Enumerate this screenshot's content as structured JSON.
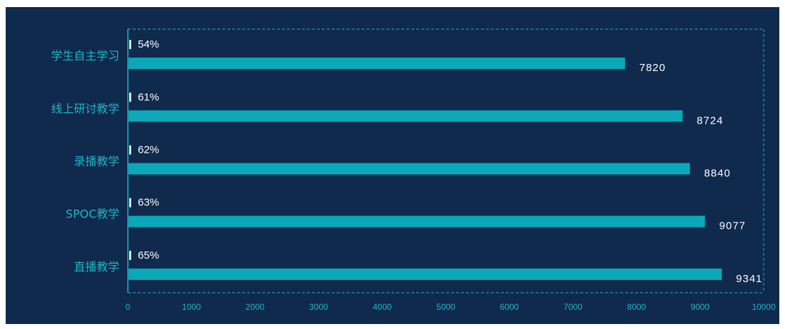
{
  "colors": {
    "background": "#0f2a4d",
    "bar": "#0aa8b8",
    "axis": "#1fb4c4",
    "label": "#ffffff"
  },
  "chart_data": {
    "type": "bar",
    "orientation": "horizontal",
    "categories": [
      "学生自主学习",
      "线上研讨教学",
      "录播教学",
      "SPOC教学",
      "直播教学"
    ],
    "values": [
      7820,
      8724,
      8840,
      9077,
      9341
    ],
    "percentages": [
      "54%",
      "61%",
      "62%",
      "63%",
      "65%"
    ],
    "xlim": [
      0,
      10000
    ],
    "xticks": [
      0,
      1000,
      2000,
      3000,
      4000,
      5000,
      6000,
      7000,
      8000,
      9000,
      10000
    ],
    "grid": false,
    "title": "",
    "xlabel": "",
    "ylabel": ""
  }
}
